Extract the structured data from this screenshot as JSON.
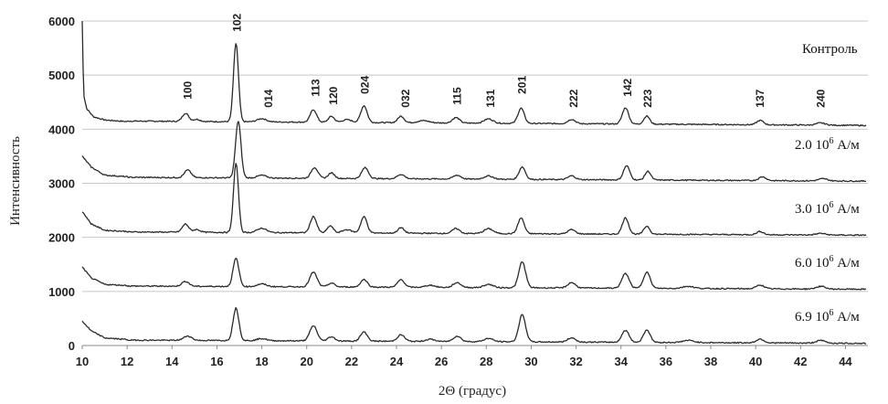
{
  "chart_data": {
    "type": "line",
    "title": "",
    "xlabel": "2Θ (градус)",
    "ylabel": "Интенсивность",
    "xlim": [
      10,
      45
    ],
    "ylim": [
      0,
      6000
    ],
    "x_ticks": [
      10,
      12,
      14,
      16,
      18,
      20,
      22,
      24,
      26,
      28,
      30,
      32,
      34,
      36,
      38,
      40,
      42,
      44
    ],
    "y_ticks": [
      0,
      1000,
      2000,
      3000,
      4000,
      5000,
      6000
    ],
    "grid": "horizontal",
    "peak_labels": [
      {
        "label": "100",
        "x": 14.7,
        "y": 4550
      },
      {
        "label": "102",
        "x": 16.9,
        "y": 5800
      },
      {
        "label": "014",
        "x": 18.3,
        "y": 4400
      },
      {
        "label": "113",
        "x": 20.4,
        "y": 4600
      },
      {
        "label": "120",
        "x": 21.2,
        "y": 4450
      },
      {
        "label": "024",
        "x": 22.6,
        "y": 4650
      },
      {
        "label": "032",
        "x": 24.4,
        "y": 4400
      },
      {
        "label": "115",
        "x": 26.7,
        "y": 4450
      },
      {
        "label": "131",
        "x": 28.2,
        "y": 4400
      },
      {
        "label": "201",
        "x": 29.6,
        "y": 4650
      },
      {
        "label": "222",
        "x": 31.9,
        "y": 4400
      },
      {
        "label": "142",
        "x": 34.3,
        "y": 4600
      },
      {
        "label": "223",
        "x": 35.2,
        "y": 4400
      },
      {
        "label": "137",
        "x": 40.2,
        "y": 4400
      },
      {
        "label": "240",
        "x": 42.9,
        "y": 4400
      }
    ],
    "series": [
      {
        "name": "Контроль",
        "baseline": 4100,
        "start": [
          [
            10.0,
            6000
          ],
          [
            10.06,
            4650
          ],
          [
            10.2,
            4380
          ],
          [
            10.5,
            4230
          ],
          [
            11.0,
            4170
          ],
          [
            12.0,
            4140
          ]
        ],
        "tail_start": 4150,
        "tail_end": 4070,
        "peaks": [
          [
            14.6,
            150,
            0.14
          ],
          [
            15.1,
            40,
            0.15
          ],
          [
            16.85,
            1450,
            0.11
          ],
          [
            18.0,
            60,
            0.2
          ],
          [
            20.3,
            230,
            0.14
          ],
          [
            21.1,
            110,
            0.13
          ],
          [
            21.8,
            50,
            0.2
          ],
          [
            22.55,
            310,
            0.14
          ],
          [
            24.2,
            120,
            0.14
          ],
          [
            25.2,
            40,
            0.25
          ],
          [
            26.65,
            100,
            0.16
          ],
          [
            28.1,
            80,
            0.2
          ],
          [
            29.55,
            280,
            0.14
          ],
          [
            31.8,
            80,
            0.16
          ],
          [
            34.2,
            300,
            0.14
          ],
          [
            35.15,
            150,
            0.13
          ],
          [
            40.2,
            80,
            0.15
          ],
          [
            42.9,
            40,
            0.2
          ]
        ]
      },
      {
        "name": "2.0 10⁶ А/м",
        "label_main": "2.0 10",
        "label_sup": "6",
        "label_unit": " А/м",
        "baseline": 3080,
        "start": [
          [
            10.0,
            3500
          ],
          [
            10.4,
            3300
          ],
          [
            11.0,
            3150
          ],
          [
            12.0,
            3120
          ]
        ],
        "tail_start": 3110,
        "tail_end": 3040,
        "peaks": [
          [
            14.7,
            140,
            0.15
          ],
          [
            16.95,
            1050,
            0.12
          ],
          [
            18.0,
            50,
            0.2
          ],
          [
            20.35,
            200,
            0.15
          ],
          [
            21.1,
            100,
            0.14
          ],
          [
            22.6,
            200,
            0.15
          ],
          [
            24.2,
            80,
            0.16
          ],
          [
            26.7,
            70,
            0.17
          ],
          [
            28.1,
            60,
            0.2
          ],
          [
            29.6,
            230,
            0.14
          ],
          [
            31.8,
            70,
            0.16
          ],
          [
            34.25,
            260,
            0.14
          ],
          [
            35.2,
            160,
            0.13
          ],
          [
            40.3,
            70,
            0.16
          ],
          [
            43.0,
            40,
            0.2
          ]
        ]
      },
      {
        "name": "3.0 10⁶ А/м",
        "label_main": "3.0 10",
        "label_sup": "6",
        "label_unit": " А/м",
        "baseline": 2080,
        "start": [
          [
            10.0,
            2480
          ],
          [
            10.4,
            2250
          ],
          [
            11.0,
            2130
          ],
          [
            12.0,
            2110
          ]
        ],
        "tail_start": 2100,
        "tail_end": 2040,
        "peaks": [
          [
            14.6,
            150,
            0.14
          ],
          [
            15.1,
            50,
            0.15
          ],
          [
            16.85,
            1280,
            0.11
          ],
          [
            18.0,
            80,
            0.2
          ],
          [
            20.3,
            300,
            0.14
          ],
          [
            21.05,
            130,
            0.13
          ],
          [
            21.8,
            60,
            0.2
          ],
          [
            22.55,
            300,
            0.14
          ],
          [
            24.2,
            100,
            0.14
          ],
          [
            26.65,
            90,
            0.16
          ],
          [
            28.1,
            90,
            0.2
          ],
          [
            29.55,
            290,
            0.14
          ],
          [
            31.8,
            80,
            0.16
          ],
          [
            34.2,
            300,
            0.14
          ],
          [
            35.15,
            150,
            0.13
          ],
          [
            40.2,
            60,
            0.15
          ],
          [
            42.9,
            30,
            0.2
          ]
        ]
      },
      {
        "name": "6.0 10⁶ А/м",
        "label_main": "6.0 10",
        "label_sup": "6",
        "label_unit": " А/м",
        "baseline": 1080,
        "start": [
          [
            10.0,
            1450
          ],
          [
            10.4,
            1250
          ],
          [
            11.0,
            1130
          ],
          [
            12.0,
            1110
          ]
        ],
        "tail_start": 1100,
        "tail_end": 1040,
        "peaks": [
          [
            14.6,
            90,
            0.16
          ],
          [
            16.85,
            520,
            0.13
          ],
          [
            18.0,
            50,
            0.2
          ],
          [
            20.3,
            270,
            0.16
          ],
          [
            21.1,
            70,
            0.15
          ],
          [
            22.55,
            140,
            0.15
          ],
          [
            24.2,
            140,
            0.15
          ],
          [
            25.5,
            40,
            0.2
          ],
          [
            26.7,
            90,
            0.17
          ],
          [
            28.1,
            60,
            0.2
          ],
          [
            29.6,
            480,
            0.15
          ],
          [
            31.8,
            100,
            0.17
          ],
          [
            34.2,
            270,
            0.16
          ],
          [
            35.15,
            300,
            0.15
          ],
          [
            37.0,
            40,
            0.25
          ],
          [
            40.2,
            70,
            0.17
          ],
          [
            42.9,
            50,
            0.2
          ]
        ]
      },
      {
        "name": "6.9 10⁶ А/м",
        "label_main": "6.9 10",
        "label_sup": "6",
        "label_unit": " А/м",
        "baseline": 80,
        "start": [
          [
            10.0,
            450
          ],
          [
            10.4,
            270
          ],
          [
            11.0,
            140
          ],
          [
            12.0,
            110
          ]
        ],
        "tail_start": 100,
        "tail_end": 40,
        "peaks": [
          [
            14.7,
            80,
            0.18
          ],
          [
            16.85,
            600,
            0.13
          ],
          [
            18.0,
            40,
            0.2
          ],
          [
            20.3,
            280,
            0.16
          ],
          [
            21.1,
            80,
            0.15
          ],
          [
            22.55,
            170,
            0.15
          ],
          [
            24.2,
            120,
            0.16
          ],
          [
            25.5,
            40,
            0.2
          ],
          [
            26.7,
            100,
            0.17
          ],
          [
            28.1,
            60,
            0.2
          ],
          [
            29.6,
            500,
            0.15
          ],
          [
            31.8,
            80,
            0.17
          ],
          [
            34.2,
            220,
            0.16
          ],
          [
            35.15,
            230,
            0.15
          ],
          [
            37.0,
            40,
            0.25
          ],
          [
            40.2,
            70,
            0.17
          ],
          [
            42.9,
            50,
            0.2
          ]
        ]
      }
    ]
  }
}
